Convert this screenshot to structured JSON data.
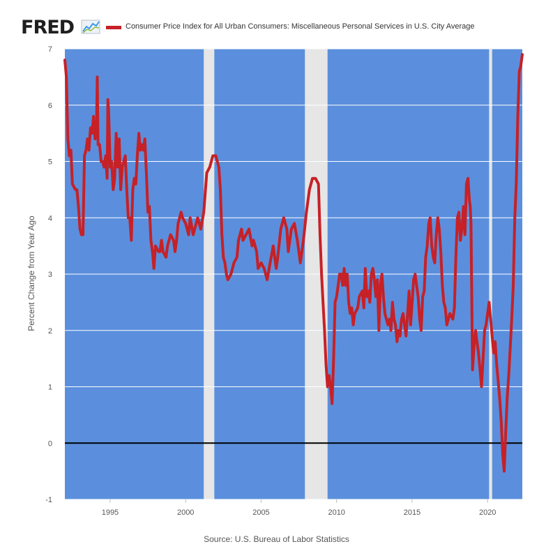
{
  "header": {
    "logo_text": "FRED",
    "legend_label": "Consumer Price Index for All Urban Consumers: Miscellaneous Personal Services in U.S. City Average"
  },
  "source_text": "Source: U.S. Bureau of Labor Statistics",
  "colors": {
    "plot_background": "#5b8fdd",
    "recession_band": "#e6e6e6",
    "series_line": "#c62127",
    "gridline": "#ffffff",
    "zero_line": "#000000"
  },
  "chart_data": {
    "type": "line",
    "title": "",
    "xlabel": "",
    "ylabel": "Percent Change from Year Ago",
    "xlim": [
      1992.0,
      2022.3
    ],
    "ylim": [
      -1,
      7
    ],
    "grid": true,
    "legend_position": "top-left",
    "x_tick_labels": [
      "1995",
      "2000",
      "2005",
      "2010",
      "2015",
      "2020"
    ],
    "y_tick_labels": [
      "-1",
      "0",
      "1",
      "2",
      "3",
      "4",
      "5",
      "6",
      "7"
    ],
    "recessions": [
      {
        "start": 2001.2,
        "end": 2001.9
      },
      {
        "start": 2007.9,
        "end": 2009.4
      },
      {
        "start": 2020.1,
        "end": 2020.3
      }
    ],
    "reference_line": 0,
    "series": [
      {
        "name": "Consumer Price Index for All Urban Consumers: Miscellaneous Personal Services in U.S. City Average",
        "points": [
          [
            1992.0,
            6.8
          ],
          [
            1992.1,
            6.5
          ],
          [
            1992.2,
            5.4
          ],
          [
            1992.3,
            5.1
          ],
          [
            1992.4,
            5.2
          ],
          [
            1992.5,
            4.6
          ],
          [
            1992.7,
            4.5
          ],
          [
            1992.8,
            4.5
          ],
          [
            1992.9,
            4.2
          ],
          [
            1993.0,
            3.8
          ],
          [
            1993.1,
            3.7
          ],
          [
            1993.2,
            3.7
          ],
          [
            1993.3,
            5.1
          ],
          [
            1993.4,
            5.2
          ],
          [
            1993.5,
            5.4
          ],
          [
            1993.6,
            5.2
          ],
          [
            1993.7,
            5.6
          ],
          [
            1993.8,
            5.5
          ],
          [
            1993.9,
            5.8
          ],
          [
            1994.0,
            5.4
          ],
          [
            1994.1,
            5.7
          ],
          [
            1994.15,
            6.5
          ],
          [
            1994.2,
            5.3
          ],
          [
            1994.3,
            5.3
          ],
          [
            1994.4,
            5.0
          ],
          [
            1994.5,
            5.0
          ],
          [
            1994.6,
            4.9
          ],
          [
            1994.7,
            5.1
          ],
          [
            1994.8,
            4.7
          ],
          [
            1994.85,
            6.1
          ],
          [
            1994.9,
            5.9
          ],
          [
            1995.0,
            4.9
          ],
          [
            1995.1,
            5.0
          ],
          [
            1995.2,
            4.5
          ],
          [
            1995.3,
            4.7
          ],
          [
            1995.4,
            5.5
          ],
          [
            1995.5,
            4.9
          ],
          [
            1995.6,
            5.4
          ],
          [
            1995.7,
            4.5
          ],
          [
            1995.8,
            4.9
          ],
          [
            1995.9,
            5.0
          ],
          [
            1996.0,
            5.1
          ],
          [
            1996.1,
            4.5
          ],
          [
            1996.2,
            4.0
          ],
          [
            1996.3,
            4.0
          ],
          [
            1996.4,
            3.6
          ],
          [
            1996.5,
            4.5
          ],
          [
            1996.6,
            4.7
          ],
          [
            1996.7,
            4.6
          ],
          [
            1996.8,
            5.1
          ],
          [
            1996.9,
            5.5
          ],
          [
            1997.0,
            5.2
          ],
          [
            1997.1,
            5.3
          ],
          [
            1997.2,
            5.2
          ],
          [
            1997.3,
            5.4
          ],
          [
            1997.4,
            4.8
          ],
          [
            1997.5,
            4.1
          ],
          [
            1997.6,
            4.2
          ],
          [
            1997.7,
            3.6
          ],
          [
            1997.8,
            3.4
          ],
          [
            1997.9,
            3.1
          ],
          [
            1998.0,
            3.5
          ],
          [
            1998.2,
            3.4
          ],
          [
            1998.3,
            3.4
          ],
          [
            1998.4,
            3.6
          ],
          [
            1998.5,
            3.4
          ],
          [
            1998.7,
            3.3
          ],
          [
            1998.8,
            3.5
          ],
          [
            1999.0,
            3.7
          ],
          [
            1999.2,
            3.6
          ],
          [
            1999.3,
            3.4
          ],
          [
            1999.4,
            3.6
          ],
          [
            1999.5,
            3.9
          ],
          [
            1999.7,
            4.1
          ],
          [
            1999.8,
            4.0
          ],
          [
            2000.0,
            3.9
          ],
          [
            2000.2,
            3.7
          ],
          [
            2000.3,
            4.0
          ],
          [
            2000.5,
            3.7
          ],
          [
            2000.6,
            3.8
          ],
          [
            2000.8,
            4.0
          ],
          [
            2001.0,
            3.8
          ],
          [
            2001.2,
            4.1
          ],
          [
            2001.4,
            4.8
          ],
          [
            2001.6,
            4.9
          ],
          [
            2001.8,
            5.1
          ],
          [
            2002.0,
            5.1
          ],
          [
            2002.2,
            4.9
          ],
          [
            2002.3,
            4.5
          ],
          [
            2002.4,
            3.7
          ],
          [
            2002.5,
            3.3
          ],
          [
            2002.6,
            3.2
          ],
          [
            2002.7,
            3.0
          ],
          [
            2002.8,
            2.9
          ],
          [
            2003.0,
            3.0
          ],
          [
            2003.2,
            3.2
          ],
          [
            2003.4,
            3.3
          ],
          [
            2003.5,
            3.6
          ],
          [
            2003.7,
            3.8
          ],
          [
            2003.8,
            3.6
          ],
          [
            2004.0,
            3.7
          ],
          [
            2004.2,
            3.8
          ],
          [
            2004.4,
            3.5
          ],
          [
            2004.5,
            3.6
          ],
          [
            2004.7,
            3.4
          ],
          [
            2004.8,
            3.1
          ],
          [
            2005.0,
            3.2
          ],
          [
            2005.2,
            3.1
          ],
          [
            2005.4,
            2.9
          ],
          [
            2005.6,
            3.2
          ],
          [
            2005.8,
            3.5
          ],
          [
            2006.0,
            3.1
          ],
          [
            2006.1,
            3.3
          ],
          [
            2006.3,
            3.8
          ],
          [
            2006.5,
            4.0
          ],
          [
            2006.7,
            3.8
          ],
          [
            2006.8,
            3.4
          ],
          [
            2007.0,
            3.8
          ],
          [
            2007.2,
            3.9
          ],
          [
            2007.4,
            3.6
          ],
          [
            2007.6,
            3.2
          ],
          [
            2007.8,
            3.6
          ],
          [
            2008.0,
            4.1
          ],
          [
            2008.2,
            4.5
          ],
          [
            2008.4,
            4.7
          ],
          [
            2008.6,
            4.7
          ],
          [
            2008.8,
            4.6
          ],
          [
            2008.9,
            3.7
          ],
          [
            2009.0,
            3.0
          ],
          [
            2009.1,
            2.5
          ],
          [
            2009.2,
            2.0
          ],
          [
            2009.3,
            1.4
          ],
          [
            2009.4,
            1.0
          ],
          [
            2009.5,
            1.2
          ],
          [
            2009.6,
            1.0
          ],
          [
            2009.7,
            0.7
          ],
          [
            2009.8,
            1.5
          ],
          [
            2009.9,
            2.5
          ],
          [
            2010.0,
            2.6
          ],
          [
            2010.1,
            2.8
          ],
          [
            2010.2,
            3.0
          ],
          [
            2010.3,
            3.0
          ],
          [
            2010.4,
            2.8
          ],
          [
            2010.5,
            3.1
          ],
          [
            2010.6,
            2.8
          ],
          [
            2010.7,
            3.0
          ],
          [
            2010.8,
            2.5
          ],
          [
            2010.9,
            2.3
          ],
          [
            2011.0,
            2.4
          ],
          [
            2011.1,
            2.1
          ],
          [
            2011.2,
            2.3
          ],
          [
            2011.4,
            2.4
          ],
          [
            2011.5,
            2.6
          ],
          [
            2011.7,
            2.7
          ],
          [
            2011.8,
            2.4
          ],
          [
            2011.9,
            3.1
          ],
          [
            2012.0,
            2.6
          ],
          [
            2012.1,
            2.7
          ],
          [
            2012.2,
            2.5
          ],
          [
            2012.3,
            3.0
          ],
          [
            2012.4,
            3.1
          ],
          [
            2012.5,
            2.9
          ],
          [
            2012.6,
            2.6
          ],
          [
            2012.7,
            2.9
          ],
          [
            2012.8,
            2.0
          ],
          [
            2012.9,
            2.8
          ],
          [
            2013.0,
            3.0
          ],
          [
            2013.1,
            2.6
          ],
          [
            2013.2,
            2.3
          ],
          [
            2013.3,
            2.2
          ],
          [
            2013.4,
            2.1
          ],
          [
            2013.5,
            2.2
          ],
          [
            2013.6,
            2.0
          ],
          [
            2013.7,
            2.5
          ],
          [
            2013.8,
            2.2
          ],
          [
            2013.9,
            2.1
          ],
          [
            2014.0,
            1.8
          ],
          [
            2014.1,
            2.0
          ],
          [
            2014.2,
            1.9
          ],
          [
            2014.3,
            2.2
          ],
          [
            2014.4,
            2.3
          ],
          [
            2014.5,
            2.1
          ],
          [
            2014.6,
            1.9
          ],
          [
            2014.7,
            2.3
          ],
          [
            2014.8,
            2.7
          ],
          [
            2014.9,
            2.1
          ],
          [
            2015.0,
            2.5
          ],
          [
            2015.1,
            2.9
          ],
          [
            2015.2,
            3.0
          ],
          [
            2015.3,
            2.8
          ],
          [
            2015.4,
            2.6
          ],
          [
            2015.5,
            2.2
          ],
          [
            2015.6,
            2.0
          ],
          [
            2015.7,
            2.6
          ],
          [
            2015.8,
            2.7
          ],
          [
            2015.9,
            3.3
          ],
          [
            2016.0,
            3.5
          ],
          [
            2016.1,
            3.9
          ],
          [
            2016.2,
            4.0
          ],
          [
            2016.3,
            3.5
          ],
          [
            2016.4,
            3.3
          ],
          [
            2016.5,
            3.2
          ],
          [
            2016.6,
            3.7
          ],
          [
            2016.7,
            4.0
          ],
          [
            2016.8,
            3.8
          ],
          [
            2016.9,
            3.4
          ],
          [
            2017.0,
            2.8
          ],
          [
            2017.1,
            2.5
          ],
          [
            2017.2,
            2.4
          ],
          [
            2017.3,
            2.1
          ],
          [
            2017.4,
            2.2
          ],
          [
            2017.5,
            2.3
          ],
          [
            2017.7,
            2.2
          ],
          [
            2017.8,
            2.4
          ],
          [
            2017.9,
            3.3
          ],
          [
            2018.0,
            4.0
          ],
          [
            2018.1,
            4.1
          ],
          [
            2018.2,
            3.6
          ],
          [
            2018.3,
            3.8
          ],
          [
            2018.4,
            4.2
          ],
          [
            2018.5,
            3.7
          ],
          [
            2018.6,
            4.6
          ],
          [
            2018.7,
            4.7
          ],
          [
            2018.8,
            4.3
          ],
          [
            2018.85,
            4.2
          ],
          [
            2018.9,
            3.9
          ],
          [
            2019.0,
            1.3
          ],
          [
            2019.1,
            1.7
          ],
          [
            2019.2,
            2.0
          ],
          [
            2019.3,
            1.8
          ],
          [
            2019.4,
            1.6
          ],
          [
            2019.5,
            1.3
          ],
          [
            2019.6,
            1.0
          ],
          [
            2019.7,
            1.5
          ],
          [
            2019.8,
            2.0
          ],
          [
            2019.9,
            2.1
          ],
          [
            2020.0,
            2.3
          ],
          [
            2020.1,
            2.5
          ],
          [
            2020.2,
            2.2
          ],
          [
            2020.3,
            1.9
          ],
          [
            2020.4,
            1.6
          ],
          [
            2020.5,
            1.8
          ],
          [
            2020.6,
            1.4
          ],
          [
            2020.7,
            1.1
          ],
          [
            2020.8,
            0.8
          ],
          [
            2020.9,
            0.4
          ],
          [
            2021.0,
            -0.2
          ],
          [
            2021.1,
            -0.5
          ],
          [
            2021.2,
            0.2
          ],
          [
            2021.3,
            0.8
          ],
          [
            2021.4,
            1.2
          ],
          [
            2021.5,
            1.7
          ],
          [
            2021.6,
            2.2
          ],
          [
            2021.7,
            2.8
          ],
          [
            2021.8,
            4.0
          ],
          [
            2021.9,
            4.6
          ],
          [
            2022.0,
            5.8
          ],
          [
            2022.1,
            6.6
          ],
          [
            2022.2,
            6.7
          ],
          [
            2022.3,
            6.9
          ]
        ]
      }
    ]
  }
}
